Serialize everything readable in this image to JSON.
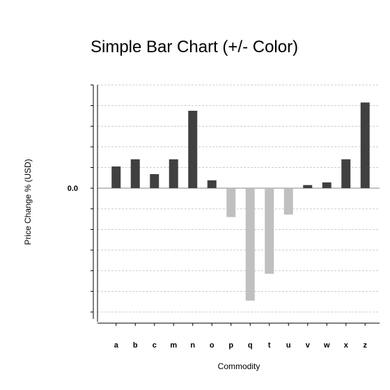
{
  "chart_data": {
    "type": "bar",
    "title": "Simple Bar Chart (+/- Color)",
    "xlabel": "Commodity",
    "ylabel": "Price Change % (USD)",
    "y_tick_labels": [
      "0.0"
    ],
    "ylim": [
      -6.0,
      5.0
    ],
    "grid": true,
    "legend": "none",
    "categories": [
      "a",
      "b",
      "c",
      "m",
      "n",
      "o",
      "p",
      "q",
      "t",
      "u",
      "v",
      "w",
      "x",
      "z"
    ],
    "values": [
      1.05,
      1.4,
      0.68,
      1.4,
      3.75,
      0.38,
      -1.4,
      -5.45,
      -4.15,
      -1.28,
      0.15,
      0.28,
      1.4,
      4.15
    ],
    "colors": {
      "positive": "#404040",
      "negative": "#c0c0c0"
    }
  }
}
